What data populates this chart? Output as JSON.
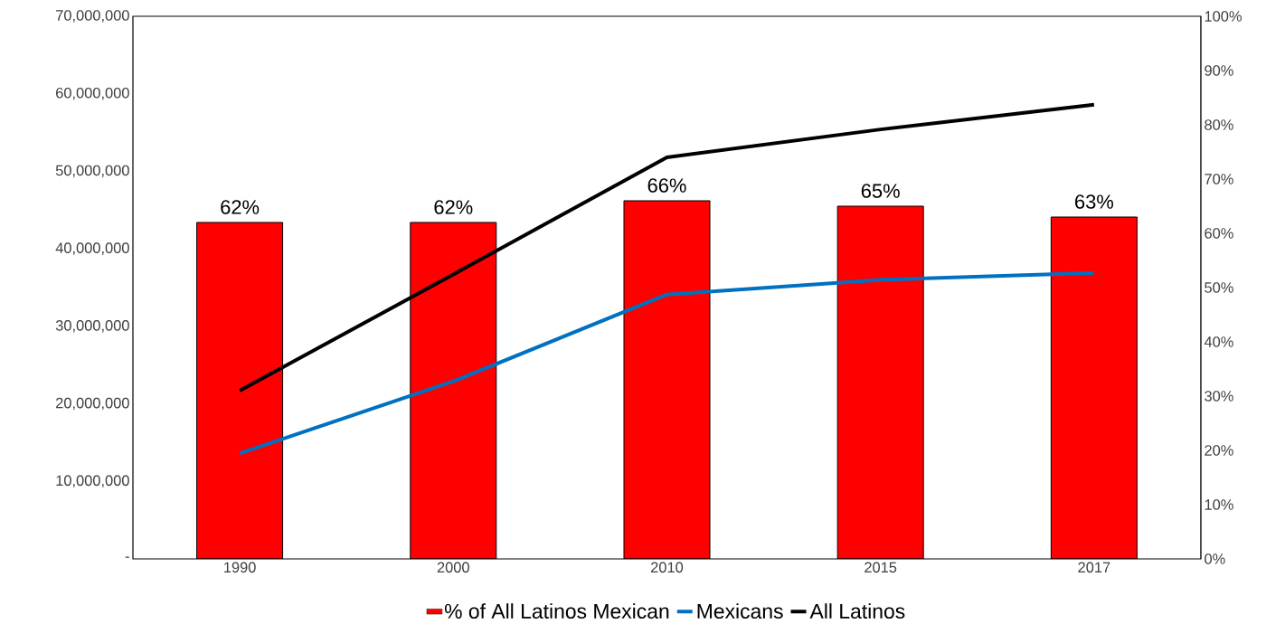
{
  "chart_data": {
    "type": "bar",
    "categories": [
      "1990",
      "2000",
      "2010",
      "2015",
      "2017"
    ],
    "series": [
      {
        "name": "% of All Latinos Mexican",
        "axis": "y2",
        "color": "#ff0000",
        "values": [
          62,
          62,
          66,
          65,
          63
        ],
        "value_labels": [
          "62%",
          "62%",
          "66%",
          "65%",
          "63%"
        ]
      },
      {
        "name": "Mexicans",
        "type": "line",
        "color": "#0070c0",
        "values": [
          13600000,
          22900000,
          34100000,
          36000000,
          36900000
        ]
      },
      {
        "name": "All Latinos",
        "type": "line",
        "color": "#000000",
        "values": [
          21700000,
          36700000,
          51800000,
          55400000,
          58600000
        ]
      }
    ],
    "ylim": [
      0,
      70000000
    ],
    "yticks": [
      {
        "value": 0,
        "label": "-"
      },
      {
        "value": 10000000,
        "label": "10,000,000"
      },
      {
        "value": 20000000,
        "label": "20,000,000"
      },
      {
        "value": 30000000,
        "label": "30,000,000"
      },
      {
        "value": 40000000,
        "label": "40,000,000"
      },
      {
        "value": 50000000,
        "label": "50,000,000"
      },
      {
        "value": 60000000,
        "label": "60,000,000"
      },
      {
        "value": 70000000,
        "label": "70,000,000"
      }
    ],
    "y2lim": [
      0,
      100
    ],
    "y2ticks": [
      {
        "value": 0,
        "label": "0%"
      },
      {
        "value": 10,
        "label": "10%"
      },
      {
        "value": 20,
        "label": "20%"
      },
      {
        "value": 30,
        "label": "30%"
      },
      {
        "value": 40,
        "label": "40%"
      },
      {
        "value": 50,
        "label": "50%"
      },
      {
        "value": 60,
        "label": "60%"
      },
      {
        "value": 70,
        "label": "70%"
      },
      {
        "value": 80,
        "label": "80%"
      },
      {
        "value": 90,
        "label": "90%"
      },
      {
        "value": 100,
        "label": "100%"
      }
    ],
    "legend": "bottom",
    "grid": false,
    "marker": "none"
  }
}
